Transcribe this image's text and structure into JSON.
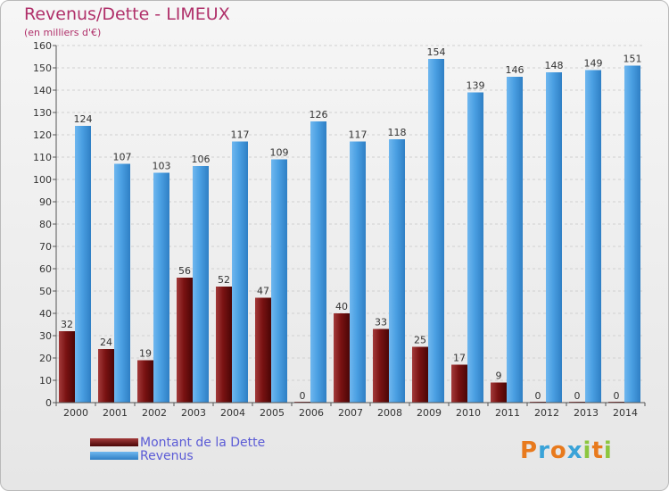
{
  "chart_data": {
    "type": "bar",
    "title": "Revenus/Dette - LIMEUX",
    "subtitle": "(en milliers d'€)",
    "categories": [
      "2000",
      "2001",
      "2002",
      "2003",
      "2004",
      "2005",
      "2006",
      "2007",
      "2008",
      "2009",
      "2010",
      "2011",
      "2012",
      "2013",
      "2014"
    ],
    "series": [
      {
        "name": "Montant de la Dette",
        "color": "#7a1212",
        "values": [
          32,
          24,
          19,
          56,
          52,
          47,
          0,
          40,
          33,
          25,
          17,
          9,
          0,
          0,
          0
        ]
      },
      {
        "name": "Revenus",
        "color": "#3f96de",
        "values": [
          124,
          107,
          103,
          106,
          117,
          109,
          126,
          117,
          118,
          154,
          139,
          146,
          148,
          149,
          151
        ]
      }
    ],
    "ylim": [
      0,
      160
    ],
    "ytick_step": 10,
    "grid": true,
    "legend_position": "bottom-left"
  },
  "logo": {
    "letters": [
      "P",
      "r",
      "o",
      "x",
      "i",
      "t",
      "i"
    ],
    "colors": [
      "#e87a1d",
      "#3aa3d8",
      "#e87a1d",
      "#3aa3d8",
      "#8cc63f",
      "#e87a1d",
      "#8cc63f"
    ]
  }
}
